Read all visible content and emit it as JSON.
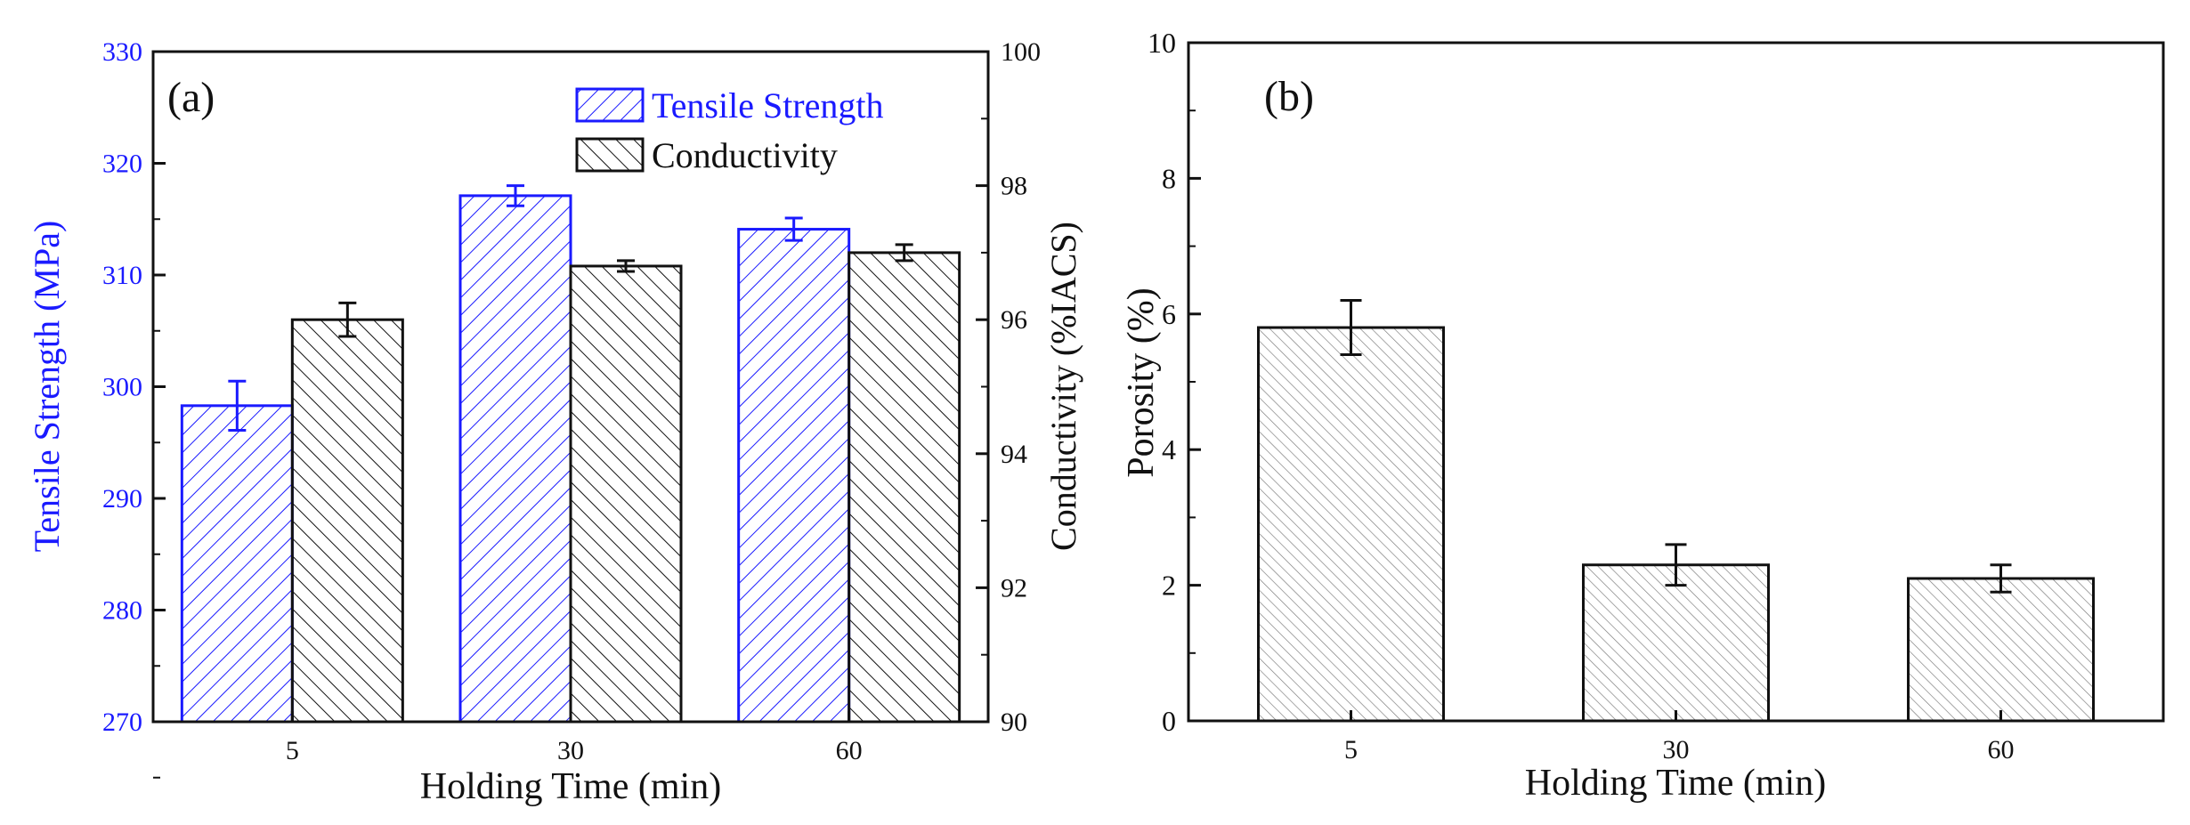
{
  "chart_data": [
    {
      "type": "bar",
      "panel_label": "(a)",
      "categories": [
        "5",
        "30",
        "60"
      ],
      "xlabel": "Holding Time (min)",
      "series": [
        {
          "name": "Tensile Strength",
          "axis": "left",
          "color": "#1a1aff",
          "values": [
            298.3,
            317.1,
            314.1
          ],
          "errors": [
            2.2,
            0.9,
            1.0
          ]
        },
        {
          "name": "Conductivity",
          "axis": "right",
          "color": "#111111",
          "values": [
            96.0,
            96.8,
            97.0
          ],
          "errors": [
            0.25,
            0.08,
            0.12
          ]
        }
      ],
      "ylabel_left": "Tensile Strength (MPa)",
      "ylim_left": [
        270,
        330
      ],
      "yticks_left": [
        270,
        280,
        290,
        300,
        310,
        320,
        330
      ],
      "ylabel_right": "Conductivity  (%IACS)",
      "ylim_right": [
        90,
        100
      ],
      "yticks_right": [
        90,
        92,
        94,
        96,
        98,
        100
      ],
      "grid": false,
      "legend": "top-right"
    },
    {
      "type": "bar",
      "panel_label": "(b)",
      "categories": [
        "5",
        "30",
        "60"
      ],
      "xlabel": "Holding Time (min)",
      "ylabel": "Porosity (%)",
      "ylim": [
        0,
        10
      ],
      "yticks": [
        0,
        2,
        4,
        6,
        8,
        10
      ],
      "series": [
        {
          "color": "#111111",
          "values": [
            5.8,
            2.3,
            2.1
          ],
          "errors": [
            0.4,
            0.3,
            0.2
          ]
        }
      ],
      "grid": false
    }
  ]
}
